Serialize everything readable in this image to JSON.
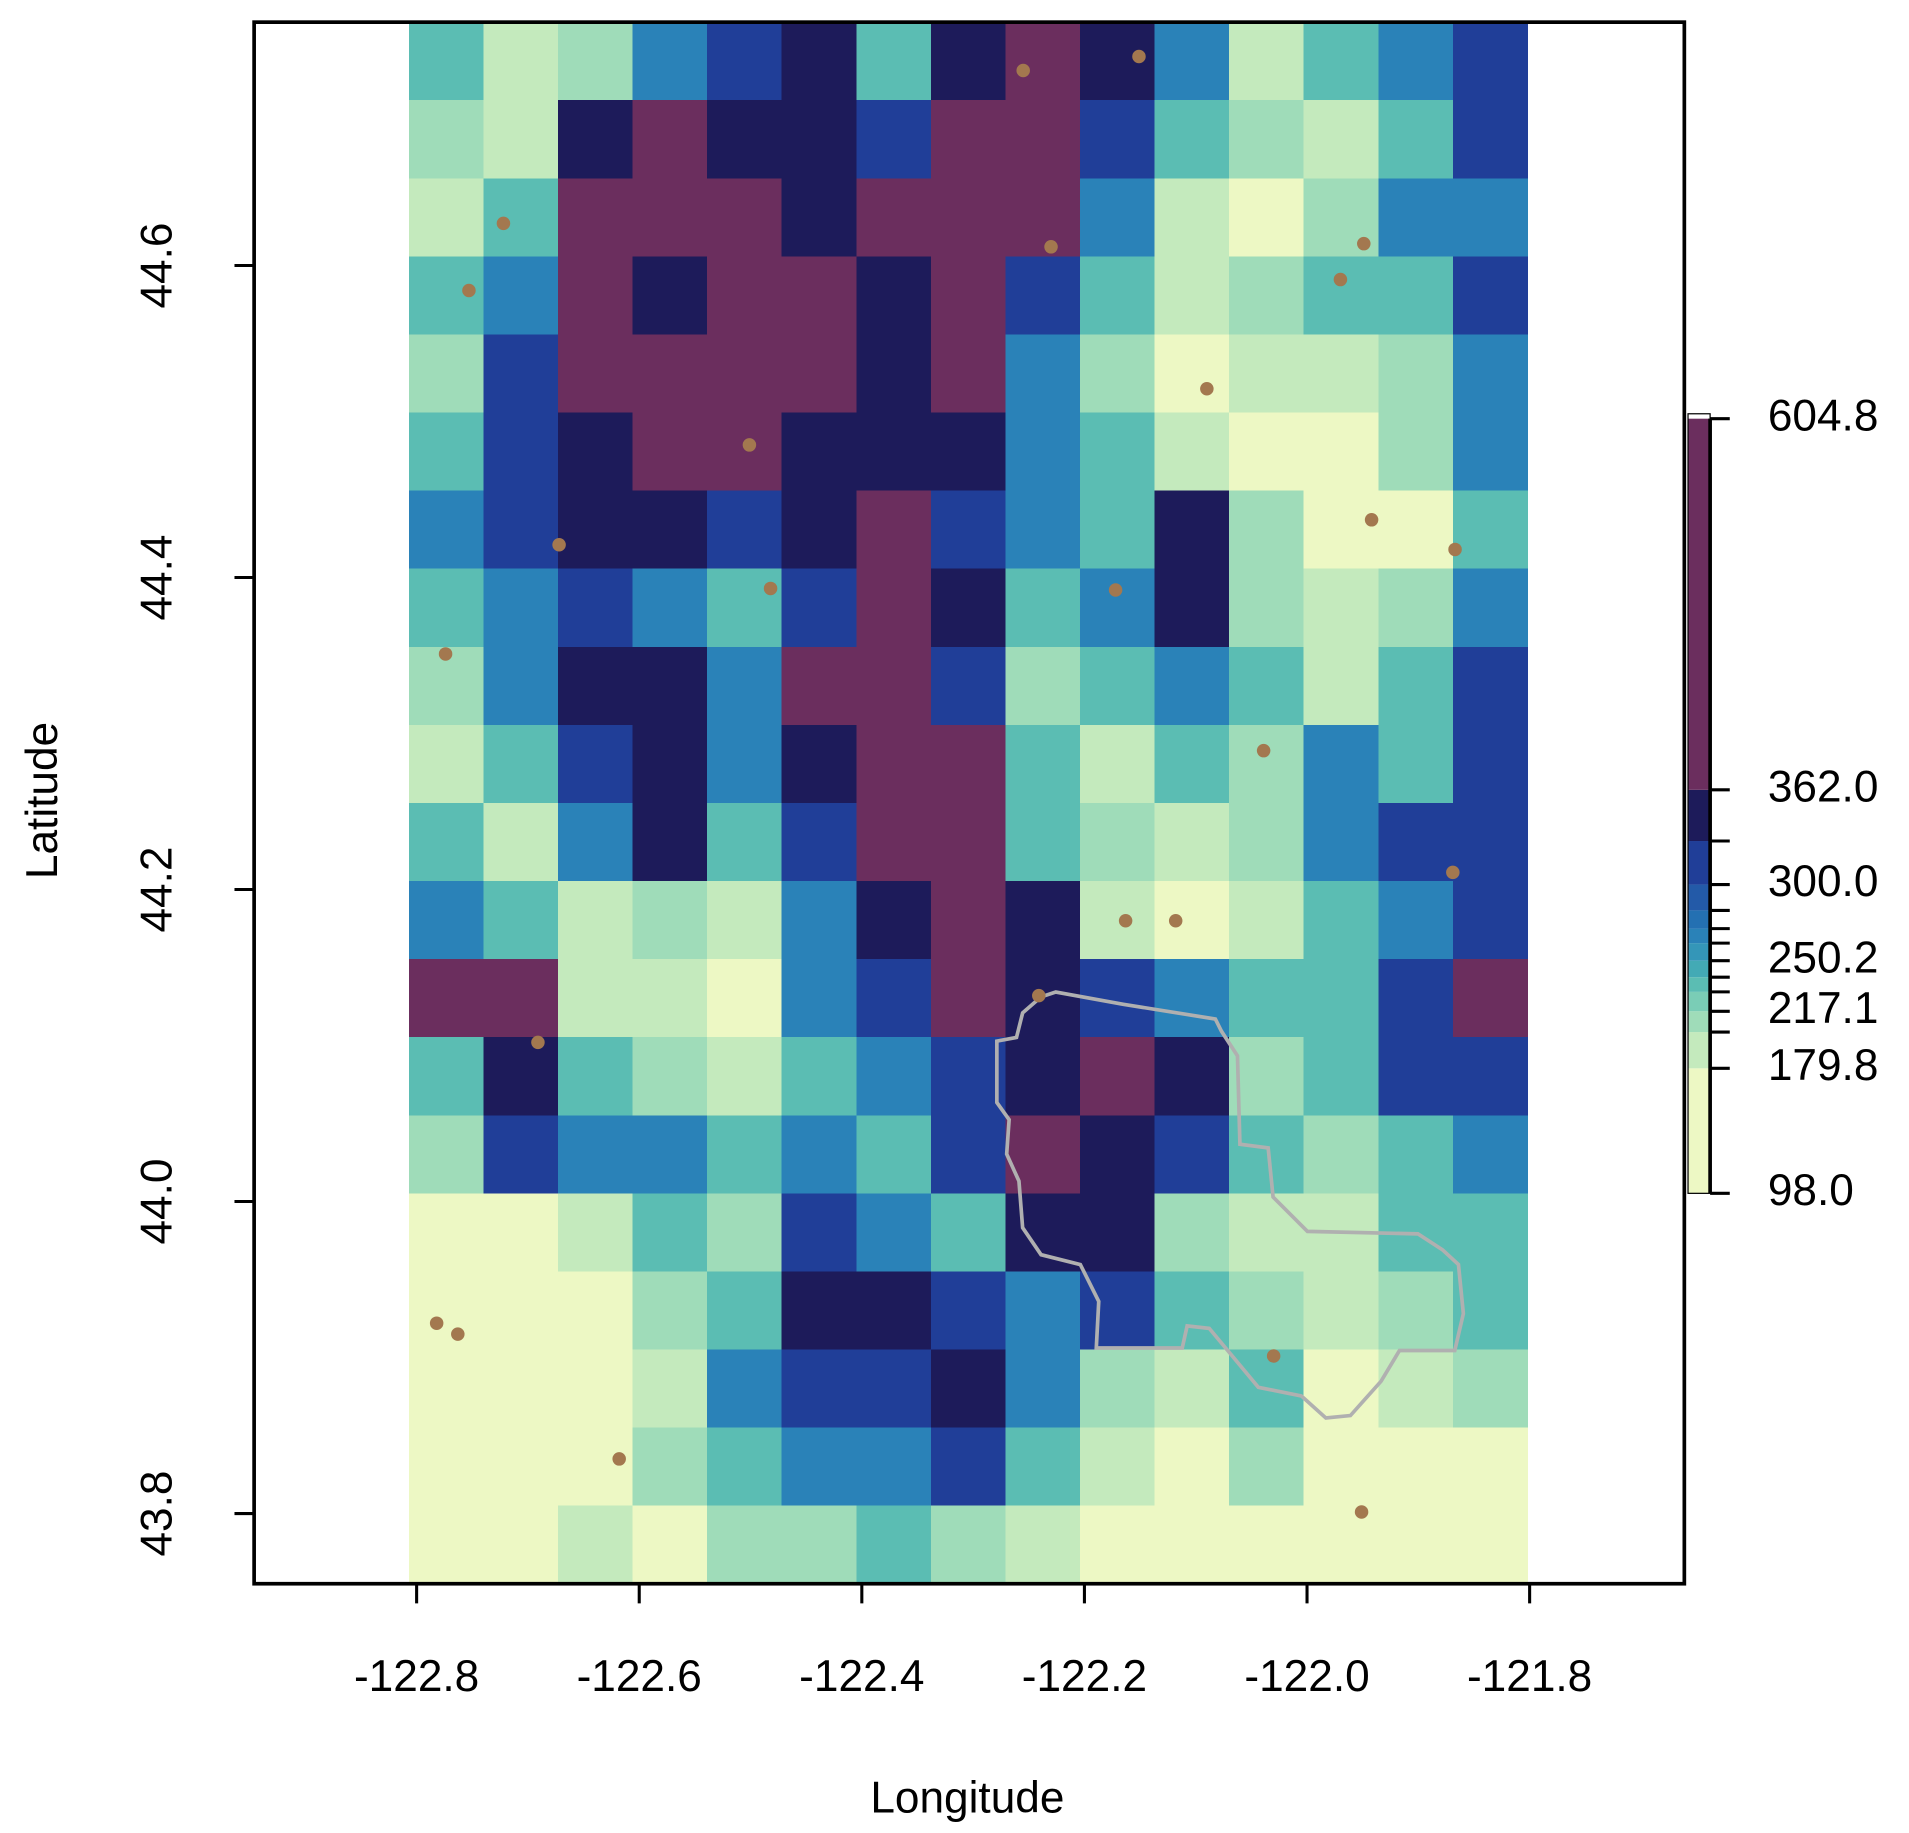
{
  "chart_data": {
    "type": "raster",
    "x_label": "Longitude",
    "y_label": "Latitude",
    "xlim": [
      -122.946,
      -121.661
    ],
    "ylim": [
      43.755,
      44.756
    ],
    "xticks": [
      -122.8,
      -122.6,
      -122.4,
      -122.2,
      {
        "value": -122.0,
        "label": "-122.0"
      },
      -121.8
    ],
    "yticks": [
      43.8,
      {
        "value": 44.0,
        "label": "44.0"
      },
      44.2,
      44.4,
      44.6
    ],
    "raster": {
      "x_range": [
        -122.807,
        -121.802
      ],
      "y_range": [
        43.755,
        44.756
      ],
      "values": [
        [
          235,
          190,
          210,
          265,
          310,
          345,
          235,
          345,
          450,
          345,
          265,
          190,
          235,
          265,
          310
        ],
        [
          210,
          190,
          345,
          450,
          345,
          345,
          310,
          450,
          450,
          310,
          235,
          210,
          190,
          235,
          310
        ],
        [
          190,
          235,
          450,
          450,
          450,
          345,
          450,
          450,
          450,
          265,
          190,
          140,
          210,
          265,
          265
        ],
        [
          235,
          265,
          450,
          345,
          450,
          450,
          345,
          450,
          310,
          235,
          190,
          210,
          235,
          235,
          310
        ],
        [
          210,
          310,
          450,
          450,
          450,
          450,
          345,
          450,
          265,
          210,
          140,
          190,
          190,
          210,
          265
        ],
        [
          235,
          310,
          345,
          450,
          450,
          345,
          345,
          345,
          265,
          235,
          190,
          140,
          140,
          210,
          265
        ],
        [
          265,
          310,
          345,
          345,
          310,
          345,
          450,
          310,
          265,
          235,
          345,
          210,
          140,
          140,
          235
        ],
        [
          235,
          265,
          310,
          265,
          235,
          310,
          450,
          345,
          235,
          265,
          345,
          210,
          190,
          210,
          265
        ],
        [
          210,
          265,
          345,
          345,
          265,
          450,
          450,
          310,
          210,
          235,
          265,
          235,
          190,
          235,
          310
        ],
        [
          190,
          235,
          310,
          345,
          265,
          345,
          450,
          450,
          235,
          190,
          235,
          210,
          265,
          235,
          310
        ],
        [
          235,
          190,
          265,
          345,
          235,
          310,
          450,
          450,
          235,
          210,
          190,
          210,
          265,
          310,
          310
        ],
        [
          265,
          235,
          190,
          210,
          190,
          265,
          345,
          450,
          345,
          190,
          140,
          190,
          235,
          265,
          310
        ],
        [
          450,
          450,
          190,
          190,
          140,
          265,
          310,
          450,
          345,
          310,
          265,
          235,
          235,
          310,
          450
        ],
        [
          235,
          345,
          235,
          210,
          190,
          235,
          265,
          310,
          345,
          450,
          345,
          210,
          235,
          310,
          310
        ],
        [
          210,
          310,
          265,
          265,
          235,
          265,
          235,
          310,
          450,
          345,
          310,
          235,
          210,
          235,
          265
        ],
        [
          140,
          140,
          190,
          235,
          210,
          310,
          265,
          235,
          345,
          345,
          210,
          190,
          190,
          235,
          235
        ],
        [
          140,
          140,
          140,
          210,
          235,
          345,
          345,
          310,
          265,
          310,
          235,
          210,
          190,
          210,
          235
        ],
        [
          140,
          140,
          140,
          190,
          265,
          310,
          310,
          345,
          265,
          210,
          190,
          235,
          140,
          190,
          210
        ],
        [
          140,
          140,
          140,
          210,
          235,
          265,
          265,
          310,
          235,
          190,
          140,
          210,
          140,
          140,
          140
        ],
        [
          140,
          140,
          190,
          140,
          210,
          210,
          235,
          210,
          190,
          140,
          140,
          140,
          140,
          140,
          140
        ]
      ]
    },
    "colorbar": {
      "lim": [
        98.0,
        604.8
      ],
      "breaks": [
        98.0,
        179.8,
        203.5,
        217.1,
        229.8,
        239.4,
        250.2,
        261.7,
        271.2,
        283.1,
        300.0,
        328.5,
        362.0,
        604.8
      ],
      "colors": [
        "#edf8c4",
        "#c4eabd",
        "#9fdcb9",
        "#7acdb6",
        "#5bbdb3",
        "#43aab5",
        "#3496b8",
        "#2a82b8",
        "#2470b2",
        "#235aa8",
        "#203e98",
        "#1d1b5a",
        "#6b2e5e"
      ],
      "ticks": [
        {
          "value": 98.0,
          "label": "98.0"
        },
        179.8,
        217.1,
        250.2,
        {
          "value": 300.0,
          "label": "300.0"
        },
        {
          "value": 362.0,
          "label": "362.0"
        },
        604.8
      ]
    },
    "points": {
      "color": "#a3784f",
      "x": [
        -122.255,
        -122.151,
        -122.722,
        -122.753,
        -122.23,
        -121.949,
        -121.97,
        -122.09,
        -122.501,
        -122.672,
        -122.482,
        -121.942,
        -121.867,
        -122.172,
        -122.774,
        -122.039,
        -121.869,
        -122.163,
        -122.118,
        -122.241,
        -122.691,
        -122.782,
        -122.763,
        -122.03,
        -122.618,
        -121.951
      ],
      "y": [
        44.725,
        44.734,
        44.627,
        44.584,
        44.612,
        44.614,
        44.591,
        44.521,
        44.485,
        44.421,
        44.393,
        44.437,
        44.418,
        44.392,
        44.351,
        44.289,
        44.211,
        44.18,
        44.18,
        44.132,
        44.102,
        43.922,
        43.915,
        43.901,
        43.835,
        43.801
      ]
    }
  }
}
